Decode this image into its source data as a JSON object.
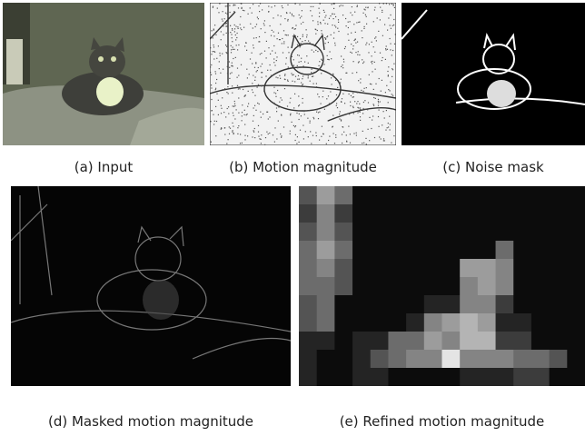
{
  "figure": {
    "panels": [
      {
        "caption": "(a) Input"
      },
      {
        "caption": "(b) Motion magnitude"
      },
      {
        "caption": "(c) Noise mask"
      },
      {
        "caption": "(d) Masked motion magnitude"
      },
      {
        "caption": "(e) Refined motion magnitude"
      }
    ]
  }
}
